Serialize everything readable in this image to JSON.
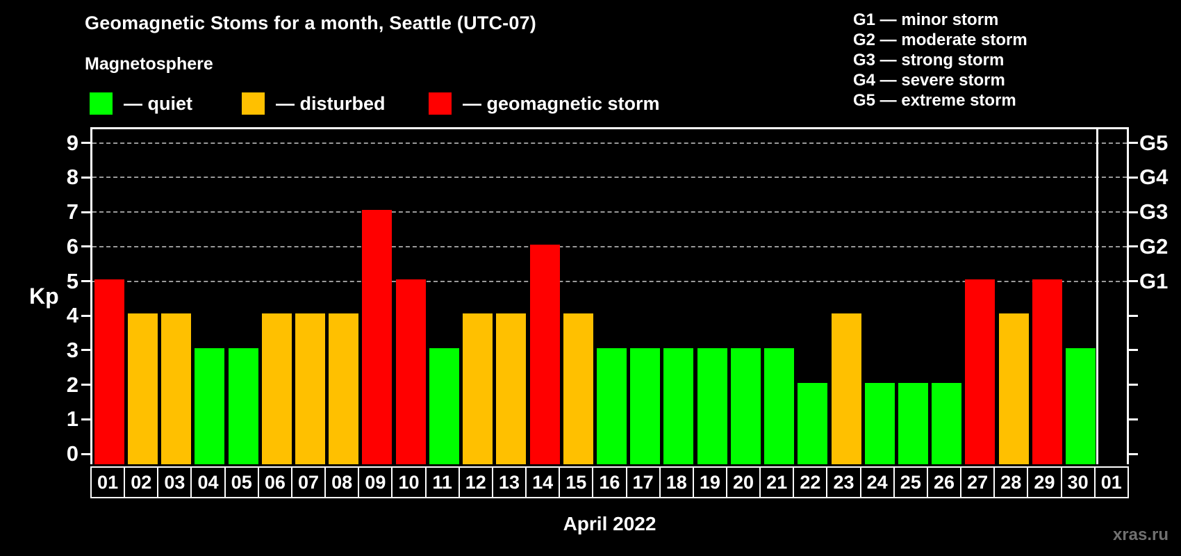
{
  "title": "Geomagnetic Stoms for a month, Seattle (UTC-07)",
  "subtitle": "Magnetosphere",
  "legend": {
    "items": [
      {
        "name": "quiet",
        "label": "— quiet",
        "color": "#00ff00"
      },
      {
        "name": "disturbed",
        "label": "— disturbed",
        "color": "#ffc000"
      },
      {
        "name": "storm",
        "label": "— geomagnetic storm",
        "color": "#ff0000"
      }
    ]
  },
  "g_scale_legend": [
    "G1 — minor storm",
    "G2 — moderate storm",
    "G3 — strong storm",
    "G4 — severe storm",
    "G5 — extreme storm"
  ],
  "axis": {
    "left_label": "Kp",
    "left_ticks": [
      0,
      1,
      2,
      3,
      4,
      5,
      6,
      7,
      8,
      9
    ],
    "right_g_ticks": [
      {
        "label": "G1",
        "kp": 5
      },
      {
        "label": "G2",
        "kp": 6
      },
      {
        "label": "G3",
        "kp": 7
      },
      {
        "label": "G4",
        "kp": 8
      },
      {
        "label": "G5",
        "kp": 9
      }
    ]
  },
  "xlabel": "April 2022",
  "watermark": "xras.ru",
  "chart_data": {
    "type": "bar",
    "title": "Geomagnetic Stoms for a month, Seattle (UTC-07)",
    "ylabel": "Kp",
    "xlabel": "April 2022",
    "ylim": [
      0,
      9
    ],
    "grid": "horizontal dashed lines at Kp 5–9 (G1–G5), legend top-right",
    "colors": {
      "quiet": "#00ff00",
      "disturbed": "#ffc000",
      "storm": "#ff0000"
    },
    "color_rule": "kp>=5 storm (red), kp=4 disturbed (orange), kp<=3 quiet (green)",
    "categories": [
      "01",
      "02",
      "03",
      "04",
      "05",
      "06",
      "07",
      "08",
      "09",
      "10",
      "11",
      "12",
      "13",
      "14",
      "15",
      "16",
      "17",
      "18",
      "19",
      "20",
      "21",
      "22",
      "23",
      "24",
      "25",
      "26",
      "27",
      "28",
      "29",
      "30",
      "01"
    ],
    "values": [
      5,
      4,
      4,
      3,
      3,
      4,
      4,
      4,
      7,
      5,
      3,
      4,
      4,
      6,
      4,
      3,
      3,
      3,
      3,
      3,
      3,
      2,
      4,
      2,
      2,
      2,
      5,
      4,
      5,
      3,
      null
    ]
  }
}
